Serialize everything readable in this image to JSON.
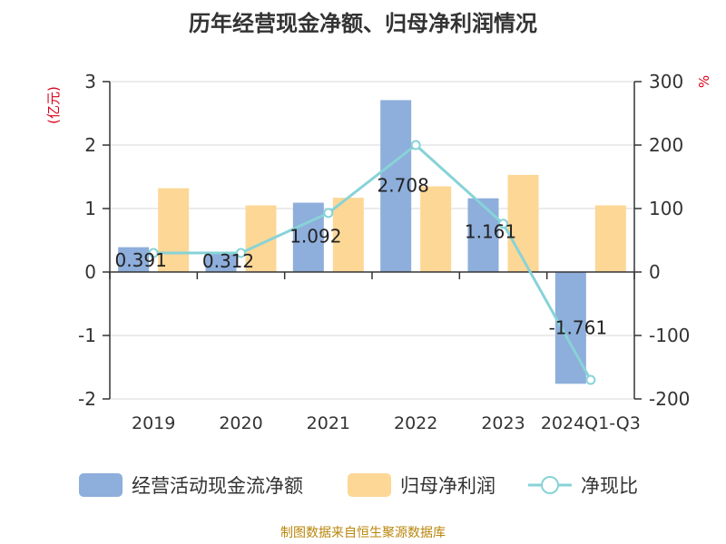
{
  "chart_data": {
    "type": "bar",
    "title": "历年经营现金净额、归母净利润情况",
    "categories": [
      "2019",
      "2020",
      "2021",
      "2022",
      "2023",
      "2024Q1-Q3"
    ],
    "ylabel_left": "(亿元)",
    "ylabel_right": "%",
    "ylim_left": [
      -2,
      3
    ],
    "ylim_right": [
      -200,
      300
    ],
    "yticks_left": [
      -2,
      -1,
      0,
      1,
      2,
      3
    ],
    "yticks_right": [
      -200,
      -100,
      0,
      100,
      200,
      300
    ],
    "series": [
      {
        "name": "经营活动现金流净额",
        "type": "bar",
        "axis": "left",
        "color": "#8eaedb",
        "values": [
          0.391,
          0.312,
          1.092,
          2.708,
          1.161,
          -1.761
        ],
        "labels": [
          "0.391",
          "0.312",
          "1.092",
          "2.708",
          "1.161",
          "-1.761"
        ]
      },
      {
        "name": "归母净利润",
        "type": "bar",
        "axis": "left",
        "color": "#fdd796",
        "values": [
          1.32,
          1.05,
          1.17,
          1.35,
          1.53,
          1.05
        ]
      },
      {
        "name": "净现比",
        "type": "line",
        "axis": "right",
        "color": "#87d3d8",
        "values": [
          30,
          30,
          93,
          200,
          76,
          -170
        ]
      }
    ]
  },
  "source": "制图数据来自恒生聚源数据库"
}
